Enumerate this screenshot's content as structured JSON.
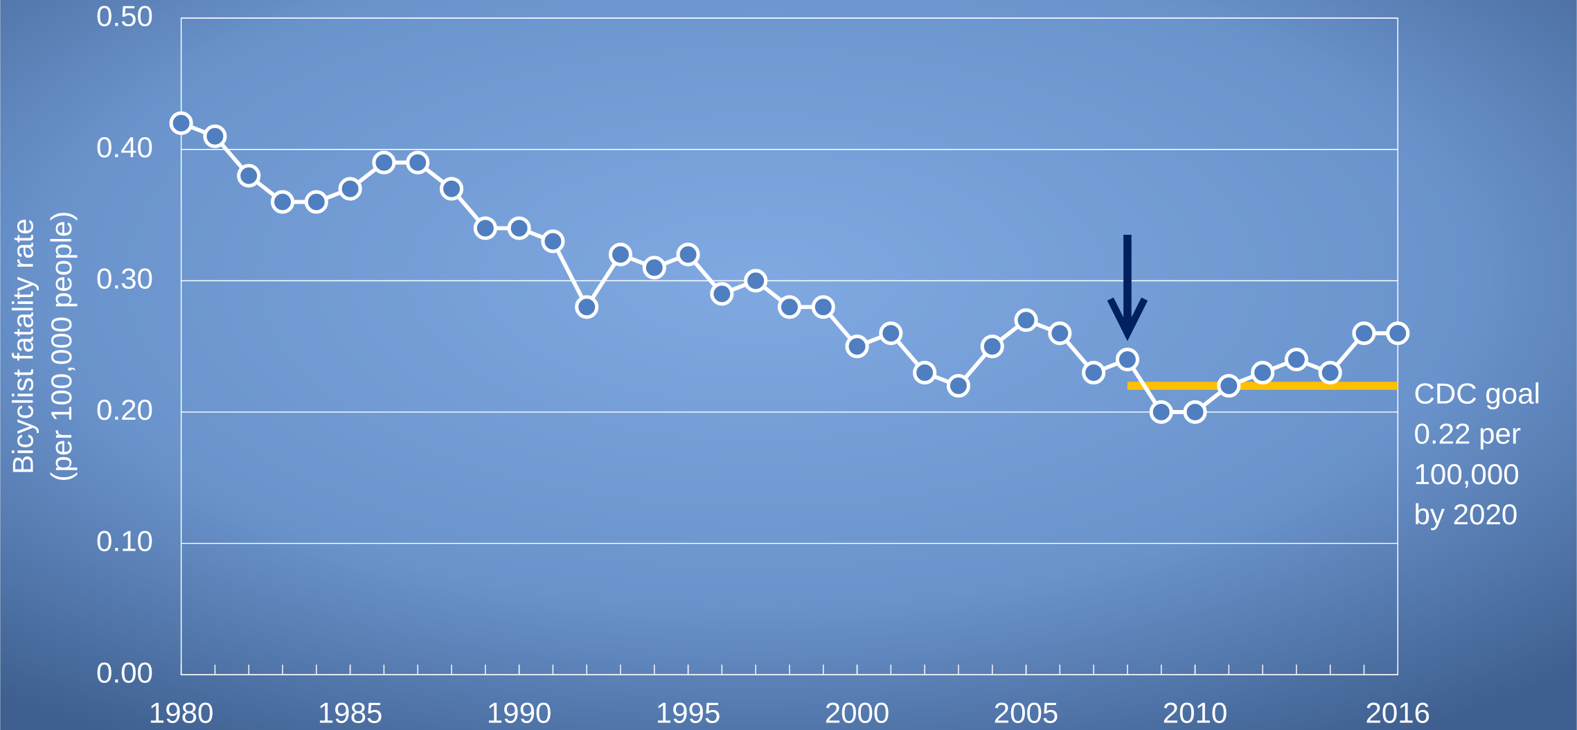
{
  "chart_data": {
    "type": "line",
    "y_label": [
      "Bicyclist fatality rate",
      "(per 100,000 people)"
    ],
    "x": [
      1980,
      1981,
      1982,
      1983,
      1984,
      1985,
      1986,
      1987,
      1988,
      1989,
      1990,
      1991,
      1992,
      1993,
      1994,
      1995,
      1996,
      1997,
      1998,
      1999,
      2000,
      2001,
      2002,
      2003,
      2004,
      2005,
      2006,
      2007,
      2008,
      2009,
      2010,
      2011,
      2012,
      2013,
      2014,
      2015,
      2016
    ],
    "series": [
      {
        "color": "#ffffff",
        "marker_color": "#4f7fc1",
        "values": [
          0.42,
          0.41,
          0.38,
          0.36,
          0.36,
          0.37,
          0.39,
          0.39,
          0.37,
          0.34,
          0.34,
          0.33,
          0.28,
          0.32,
          0.31,
          0.32,
          0.29,
          0.3,
          0.28,
          0.28,
          0.25,
          0.26,
          0.23,
          0.22,
          0.25,
          0.27,
          0.26,
          0.23,
          0.24,
          0.2,
          0.2,
          0.22,
          0.23,
          0.24,
          0.23,
          0.26,
          0.26
        ]
      }
    ],
    "xlim": [
      1980,
      2016
    ],
    "xticks": [
      1980,
      1985,
      1990,
      1995,
      2000,
      2005,
      2010,
      2016
    ],
    "ylim": [
      0,
      0.5
    ],
    "yticks": [
      {
        "value": 0,
        "label": "0.00"
      },
      {
        "value": 0.1,
        "label": "0.10"
      },
      {
        "value": 0.2,
        "label": "0.20"
      },
      {
        "value": 0.3,
        "label": "0.30"
      },
      {
        "value": 0.4,
        "label": "0.40"
      },
      {
        "value": 0.5,
        "label": "0.50"
      }
    ],
    "grid": true,
    "goal": {
      "value": 0.22,
      "x_start": 2008,
      "x_end": 2016,
      "color": "#ffc000",
      "label": [
        "CDC goal",
        "0.22 per",
        "100,000",
        "by 2020"
      ]
    },
    "arrow": {
      "x": 2008,
      "y_start": 0.335,
      "y_end": 0.26,
      "color": "#002060"
    }
  }
}
